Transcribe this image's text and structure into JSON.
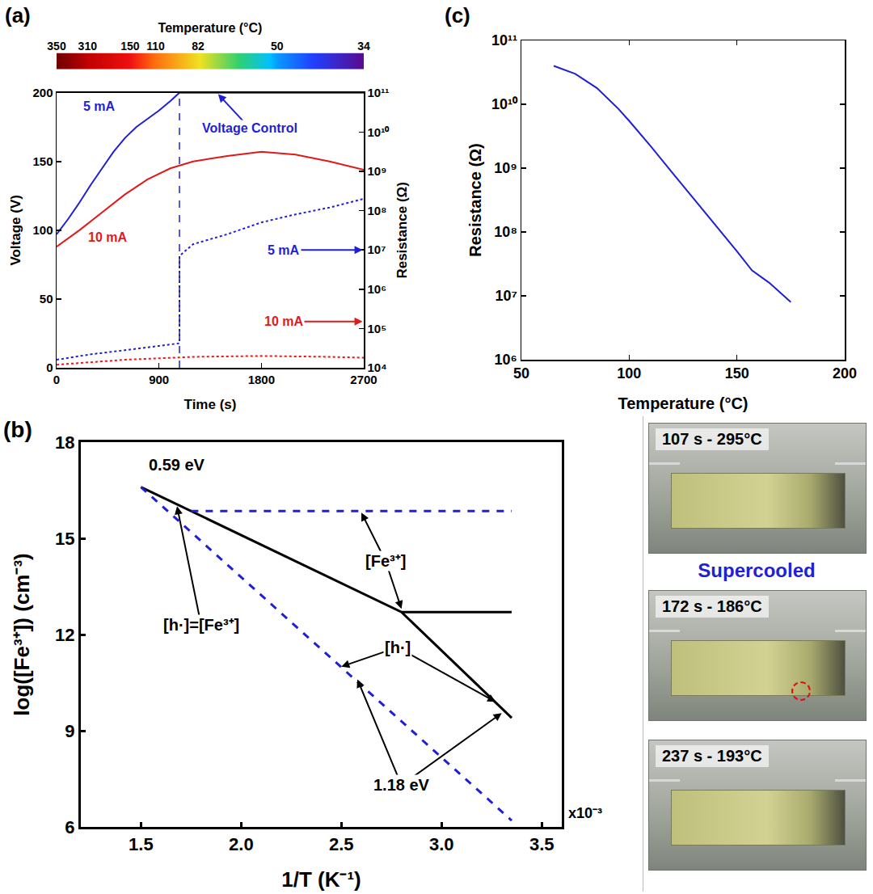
{
  "chart_data": [
    {
      "panel": "(a)",
      "type": "line",
      "grid": false,
      "log": "y2",
      "x_label": "Time (s)",
      "y_label": "Voltage (V)",
      "y2_label": "Resistance (Ω)",
      "xlim": [
        0,
        2700
      ],
      "xticks": [
        0,
        900,
        1800,
        2700
      ],
      "ylim": [
        0,
        200
      ],
      "yticks": [
        0,
        50,
        100,
        150,
        200
      ],
      "y2lim": [
        10000,
        100000000000
      ],
      "y2ticks": [
        {
          "value": 10000,
          "label": "10⁴"
        },
        {
          "value": 100000,
          "label": "10⁵"
        },
        {
          "value": 1000000,
          "label": "10⁶"
        },
        {
          "value": 10000000,
          "label": "10⁷"
        },
        {
          "value": 100000000,
          "label": "10⁸"
        },
        {
          "value": 1000000000,
          "label": "10⁹"
        },
        {
          "value": 10000000000,
          "label": "10¹⁰"
        },
        {
          "value": 100000000000,
          "label": "10¹¹"
        }
      ],
      "temperature_bar": {
        "title": "Temperature (°C)",
        "time": [
          0,
          272,
          646,
          870,
          1244,
          1938,
          2700
        ],
        "temperature": [
          350,
          310,
          150,
          110,
          82,
          50,
          34
        ]
      },
      "vertical_line": {
        "x": 1080,
        "color": "#1f1fd6",
        "line_style": "dashed"
      },
      "series": [
        {
          "color": "#1f1fd6",
          "line_style": "solid",
          "x": [
            0,
            100,
            200,
            300,
            400,
            500,
            600,
            700,
            800,
            900,
            1000,
            1080,
            2700
          ],
          "values": [
            97,
            108,
            120,
            133,
            145,
            157,
            167,
            175,
            181,
            187,
            194,
            200,
            200
          ]
        },
        {
          "color": "#e01a1a",
          "line_style": "solid",
          "x": [
            0,
            200,
            400,
            600,
            800,
            1000,
            1200,
            1500,
            1800,
            2100,
            2400,
            2700
          ],
          "values": [
            88,
            100,
            113,
            126,
            137,
            145,
            150,
            154,
            157,
            155,
            150,
            144
          ]
        },
        {
          "color": "#1f1fd6",
          "line_style": "dotted",
          "axis": "y2",
          "x": [
            0,
            300,
            600,
            900,
            1080,
            1080,
            1200,
            1500,
            1800,
            2100,
            2400,
            2700
          ],
          "values": [
            16000,
            22000,
            28000,
            36000,
            42000,
            7000000,
            14000000,
            25000000,
            50000000,
            80000000,
            120000000,
            200000000
          ]
        },
        {
          "color": "#e01a1a",
          "line_style": "dotted",
          "axis": "y2",
          "x": [
            0,
            600,
            1200,
            1800,
            2400,
            2700
          ],
          "values": [
            12000,
            16000,
            19000,
            20000,
            19000,
            18000
          ]
        }
      ],
      "annotations": [
        {
          "text": "5 mA",
          "x": 380,
          "y": 190,
          "color": "#1f1fd6"
        },
        {
          "text": "10 mA",
          "x": 450,
          "y": 95,
          "color": "#e01a1a"
        },
        {
          "text": "Voltage Control",
          "x": 1700,
          "y": 174,
          "color": "#1f1fd6",
          "arrows": [
            [
              1420,
              199
            ]
          ]
        },
        {
          "text": "5 mA",
          "x": 2000,
          "y": 10000000,
          "axis": "y2",
          "color": "#1f1fd6",
          "arrows": [
            [
              2690,
              10000000
            ]
          ]
        },
        {
          "text": "10 mA",
          "x": 2000,
          "y": 150000,
          "axis": "y2",
          "color": "#e01a1a",
          "arrows": [
            [
              2690,
              150000
            ]
          ]
        }
      ]
    },
    {
      "panel": "(b)",
      "type": "line",
      "grid": false,
      "x_label": "1/T (K⁻¹)",
      "y_label": "log([Fe³⁺]) (cm⁻³)",
      "x_multiplier": "x10⁻³",
      "xlim": [
        1.2,
        3.6
      ],
      "xticks": [
        1.5,
        {
          "value": 2,
          "label": "2.0"
        },
        2.5,
        {
          "value": 3,
          "label": "3.0"
        },
        3.5
      ],
      "ylim": [
        6,
        18
      ],
      "yticks": [
        6,
        9,
        12,
        15,
        18
      ],
      "series": [
        {
          "color": "#000000",
          "line_style": "solid",
          "x": [
            1.5,
            2.8,
            3.35
          ],
          "values": [
            16.6,
            12.7,
            9.4
          ]
        },
        {
          "color": "#000000",
          "line_style": "solid",
          "x": [
            2.8,
            3.35
          ],
          "values": [
            12.7,
            12.7
          ]
        },
        {
          "color": "#1f1fd6",
          "line_style": "dashed",
          "x": [
            1.5,
            3.35
          ],
          "values": [
            16.6,
            6.2
          ]
        },
        {
          "color": "#1f1fd6",
          "line_style": "dashed",
          "x": [
            1.75,
            3.35
          ],
          "values": [
            15.85,
            15.85
          ]
        }
      ],
      "annotations": [
        {
          "text": "0.59 eV",
          "x": 1.68,
          "y": 17.3,
          "color": "#000000"
        },
        {
          "text": "[h·]=[Fe³⁺]",
          "x": 1.8,
          "y": 12.3,
          "color": "#000000",
          "arrows": [
            [
              1.68,
              16.0
            ]
          ]
        },
        {
          "text": "[Fe³⁺]",
          "x": 2.72,
          "y": 14.3,
          "color": "#000000",
          "arrows": [
            [
              2.6,
              15.8
            ],
            [
              2.8,
              12.8
            ]
          ]
        },
        {
          "text": "[h·]",
          "x": 2.78,
          "y": 11.6,
          "color": "#000000",
          "arrows": [
            [
              2.5,
              11.0
            ],
            [
              3.27,
              9.9
            ]
          ]
        },
        {
          "text": "1.18 eV",
          "x": 2.8,
          "y": 7.3,
          "color": "#000000",
          "arrows": [
            [
              2.58,
              10.6
            ],
            [
              3.3,
              9.55
            ]
          ]
        }
      ]
    },
    {
      "panel": "(c)",
      "type": "line",
      "grid": false,
      "log": "y",
      "x_label": "Temperature (°C)",
      "y_label": "Resistance (Ω)",
      "xlim": [
        50,
        200
      ],
      "xticks": [
        50,
        100,
        150,
        200
      ],
      "ylim": [
        1000000,
        100000000000
      ],
      "yticks": [
        {
          "value": 1000000,
          "label": "10⁶"
        },
        {
          "value": 10000000,
          "label": "10⁷"
        },
        {
          "value": 100000000,
          "label": "10⁸"
        },
        {
          "value": 1000000000,
          "label": "10⁹"
        },
        {
          "value": 10000000000,
          "label": "10¹⁰"
        },
        {
          "value": 100000000000,
          "label": "10¹¹"
        }
      ],
      "series": [
        {
          "color": "#1f1fd6",
          "line_style": "solid",
          "x": [
            65,
            75,
            85,
            95,
            100,
            110,
            120,
            130,
            140,
            150,
            157,
            165,
            175
          ],
          "values": [
            40000000000,
            30000000000,
            18000000000,
            8500000000,
            5500000000,
            2200000000,
            850000000,
            330000000,
            130000000,
            50000000,
            25000000,
            16000000,
            8000000
          ]
        }
      ]
    }
  ],
  "photos": {
    "label": "Supercooled",
    "frames": [
      {
        "caption": "107 s - 295°C"
      },
      {
        "caption": "172 s - 186°C",
        "marked": true
      },
      {
        "caption": "237 s - 193°C"
      }
    ]
  }
}
